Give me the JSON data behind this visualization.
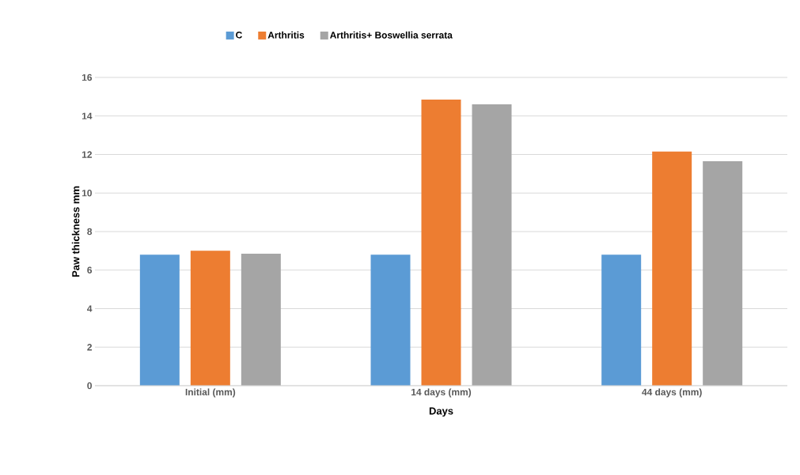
{
  "chart_data": {
    "type": "bar",
    "xlabel": "Days",
    "ylabel": "Paw thickness mm",
    "categories": [
      "Initial (mm)",
      "14 days (mm)",
      "44 days (mm)"
    ],
    "series": [
      {
        "name": "C",
        "color": "#5b9bd5",
        "values": [
          6.8,
          6.8,
          6.8
        ]
      },
      {
        "name": "Arthritis",
        "color": "#ed7d31",
        "values": [
          7.0,
          14.85,
          12.15
        ]
      },
      {
        "name": "Arthritis+ Boswellia serrata",
        "color": "#a5a5a5",
        "values": [
          6.85,
          14.6,
          11.65
        ]
      }
    ],
    "ylim": [
      0,
      16
    ],
    "yticks": [
      0,
      2,
      4,
      6,
      8,
      10,
      12,
      14,
      16
    ],
    "grid": "y",
    "legend": "top"
  }
}
